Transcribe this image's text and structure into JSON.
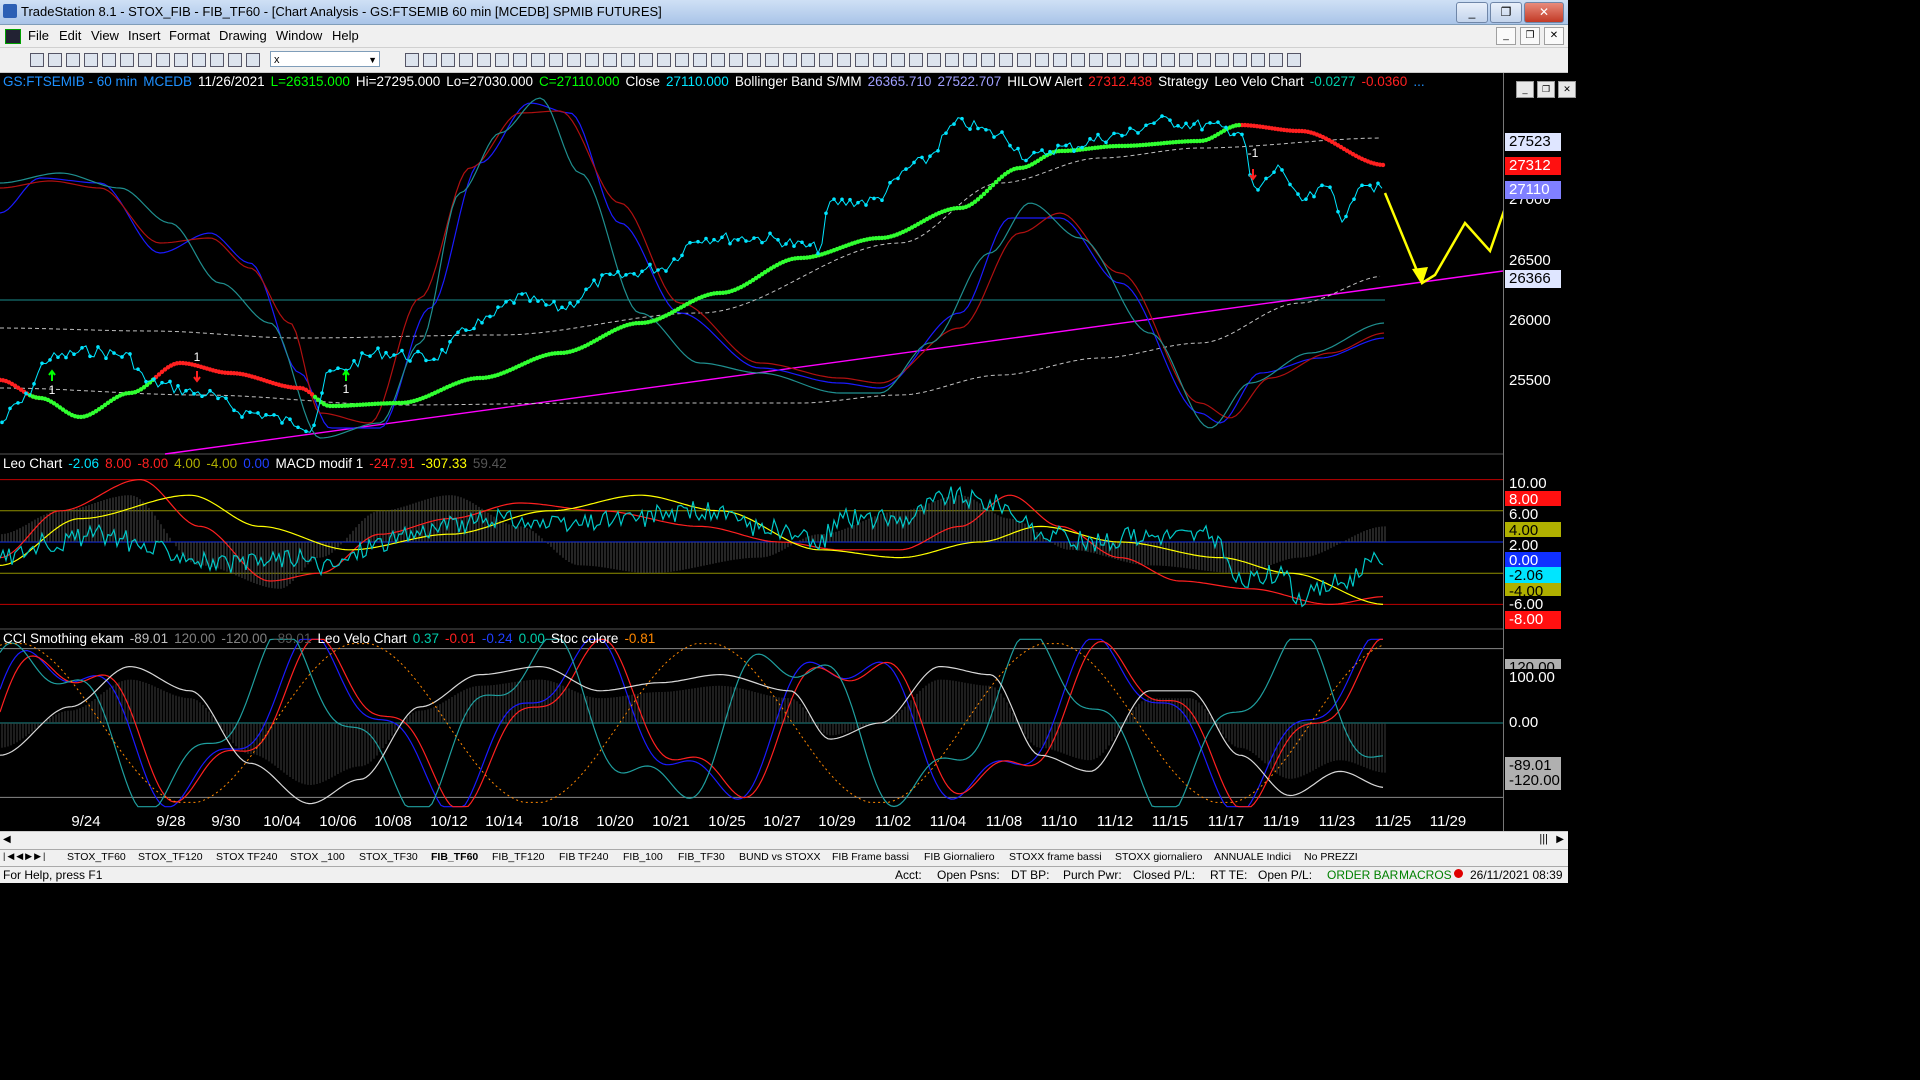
{
  "window": {
    "title": "TradeStation 8.1 - STOX_FIB - FIB_TF60 - [Chart Analysis - GS:FTSEMIB  60 min  [MCEDB] SPMIB FUTURES]",
    "controls": [
      "_",
      "❐",
      "✕"
    ]
  },
  "menu": {
    "items": [
      "File",
      "Edit",
      "View",
      "Insert",
      "Format",
      "Drawing",
      "Window",
      "Help"
    ],
    "mdi_controls": [
      "_",
      "❐",
      "✕"
    ]
  },
  "toolbar": {
    "symbol_combo": "x"
  },
  "chart": {
    "inner_controls": [
      "_",
      "❐",
      "✕"
    ],
    "price_legend": [
      {
        "text": "GS:FTSEMIB - 60 min",
        "color": "#1e90ff"
      },
      {
        "text": "MCEDB",
        "color": "#1e90ff"
      },
      {
        "text": "11/26/2021",
        "color": "#ffffff"
      },
      {
        "text": "L=26315.000",
        "color": "#00ff00"
      },
      {
        "text": "Hi=27295.000",
        "color": "#ffffff"
      },
      {
        "text": "Lo=27030.000",
        "color": "#ffffff"
      },
      {
        "text": "C=27110.000",
        "color": "#00ff00"
      },
      {
        "text": "Close",
        "color": "#ffffff"
      },
      {
        "text": "27110.000",
        "color": "#00e5ff"
      },
      {
        "text": "Bollinger Band S/MM",
        "color": "#ffffff"
      },
      {
        "text": "26365.710",
        "color": "#a0a0ff"
      },
      {
        "text": "27522.707",
        "color": "#a0a0ff"
      },
      {
        "text": "HILOW Alert",
        "color": "#ffffff"
      },
      {
        "text": "27312.438",
        "color": "#ff2020"
      },
      {
        "text": "Strategy",
        "color": "#ffffff"
      },
      {
        "text": "Leo Velo Chart",
        "color": "#ffffff"
      },
      {
        "text": "-0.0277",
        "color": "#00ccaa"
      },
      {
        "text": "-0.0360",
        "color": "#ff2020"
      },
      {
        "text": "...",
        "color": "#1e90ff"
      }
    ],
    "leo_legend": [
      {
        "text": "Leo Chart",
        "color": "#ffffff"
      },
      {
        "text": "-2.06",
        "color": "#00e5ff"
      },
      {
        "text": "8.00",
        "color": "#ff2020"
      },
      {
        "text": "-8.00",
        "color": "#ff2020"
      },
      {
        "text": "4.00",
        "color": "#b0b000"
      },
      {
        "text": "-4.00",
        "color": "#b0b000"
      },
      {
        "text": "0.00",
        "color": "#2040ff"
      },
      {
        "text": "MACD modif 1",
        "color": "#ffffff"
      },
      {
        "text": "-247.91",
        "color": "#ff2020"
      },
      {
        "text": "-307.33",
        "color": "#ffff00"
      },
      {
        "text": "59.42",
        "color": "#555555"
      }
    ],
    "cci_legend": [
      {
        "text": "CCI Smothing ekam",
        "color": "#ffffff"
      },
      {
        "text": "-89.01",
        "color": "#c0c0c0"
      },
      {
        "text": "120.00",
        "color": "#808080"
      },
      {
        "text": "-120.00",
        "color": "#808080"
      },
      {
        "text": "-89.01",
        "color": "#555555"
      },
      {
        "text": "Leo Velo Chart",
        "color": "#ffffff"
      },
      {
        "text": "0.37",
        "color": "#00ccaa"
      },
      {
        "text": "-0.01",
        "color": "#ff2020"
      },
      {
        "text": "-0.24",
        "color": "#2040ff"
      },
      {
        "text": "0.00",
        "color": "#00ccaa"
      },
      {
        "text": "Stoc colore",
        "color": "#ffffff"
      },
      {
        "text": "-0.81",
        "color": "#ff8800"
      }
    ],
    "price_axis": {
      "ticks": [
        "27000",
        "26500",
        "26000",
        "25500"
      ],
      "boxes": [
        {
          "text": "27523",
          "bg": "#dfe6ff",
          "color": "#000000"
        },
        {
          "text": "27312",
          "bg": "#ff1010",
          "color": "#ffffff"
        },
        {
          "text": "27110",
          "bg": "#8080ff",
          "color": "#ffffff"
        },
        {
          "text": "26366",
          "bg": "#dfe6ff",
          "color": "#000000"
        }
      ]
    },
    "leo_axis": [
      {
        "text": "10.00",
        "bg": "#000000",
        "color": "#ffffff"
      },
      {
        "text": "8.00",
        "bg": "#ff1010",
        "color": "#ffffff"
      },
      {
        "text": "6.00",
        "bg": "#000000",
        "color": "#ffffff"
      },
      {
        "text": "4.00",
        "bg": "#b0b000",
        "color": "#000000"
      },
      {
        "text": "2.00",
        "bg": "#000000",
        "color": "#ffffff"
      },
      {
        "text": "0.00",
        "bg": "#1030ff",
        "color": "#ffffff"
      },
      {
        "text": "-2.06",
        "bg": "#00e5ff",
        "color": "#000000"
      },
      {
        "text": "-4.00",
        "bg": "#b0b000",
        "color": "#000000"
      },
      {
        "text": "-6.00",
        "bg": "#000000",
        "color": "#ffffff"
      },
      {
        "text": "-8.00",
        "bg": "#ff1010",
        "color": "#ffffff"
      }
    ],
    "cci_axis": [
      {
        "text": "120.00",
        "bg": "#b0b0b0",
        "color": "#000000"
      },
      {
        "text": "100.00",
        "bg": "#000000",
        "color": "#ffffff"
      },
      {
        "text": "0.00",
        "bg": "#000000",
        "color": "#ffffff"
      },
      {
        "text": "-89.01",
        "bg": "#b0b0b0",
        "color": "#000000"
      },
      {
        "text": "-120.00",
        "bg": "#b0b0b0",
        "color": "#000000"
      }
    ],
    "date_labels": [
      "9/24",
      "9/28",
      "9/30",
      "10/04",
      "10/06",
      "10/08",
      "10/12",
      "10/14",
      "10/18",
      "10/20",
      "10/21",
      "10/25",
      "10/27",
      "10/29",
      "11/02",
      "11/04",
      "11/08",
      "11/10",
      "11/12",
      "11/15",
      "11/17",
      "11/19",
      "11/23",
      "11/25",
      "11/29"
    ],
    "annotations": [
      "1",
      "1",
      "1",
      "1",
      "-1"
    ]
  },
  "tabs": {
    "items": [
      "STOX_TF60",
      "STOX_TF120",
      "STOX TF240",
      "STOX _100",
      "STOX_TF30",
      "FIB_TF60",
      "FIB_TF120",
      "FIB TF240",
      "FIB_100",
      "FIB_TF30",
      "BUND vs STOXX",
      "FIB Frame bassi",
      "FIB Giornaliero",
      "STOXX frame bassi",
      "STOXX giornaliero",
      "ANNUALE Indici",
      "No PREZZI"
    ],
    "active": "FIB_TF60"
  },
  "status": {
    "help": "For Help, press F1",
    "acct": "Acct:",
    "open_psns": "Open Psns:",
    "dt_bp": "DT BP:",
    "purch_pwr": "Purch Pwr:",
    "closed_pl": "Closed P/L:",
    "rt_te": "RT TE:",
    "open_pl": "Open P/L:",
    "order_bar": "ORDER BAR",
    "macros": "MACROS",
    "datetime": "26/11/2021 08:39"
  },
  "colors": {
    "price_dots": "#00e5ff",
    "ma_green": "#30ff30",
    "ma_red": "#ff2020",
    "trendline": "#ff00ff",
    "projection": "#ffff00"
  }
}
